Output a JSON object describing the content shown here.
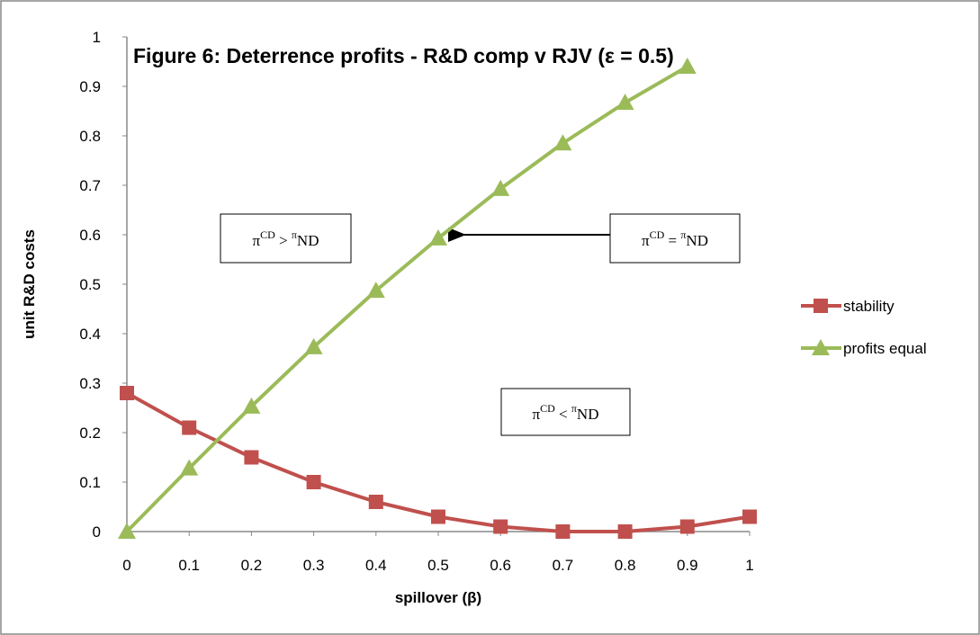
{
  "chart_data": {
    "type": "line",
    "title": "Figure 6: Deterrence profits - R&D comp v RJV (ε = 0.5)",
    "xlabel": "spillover (β)",
    "ylabel": "unit R&D costs",
    "series": [
      {
        "name": "stability",
        "color": "#c0504d",
        "marker": "square",
        "x": [
          0,
          0.1,
          0.2,
          0.3,
          0.4,
          0.5,
          0.6,
          0.7,
          0.8,
          0.9,
          1
        ],
        "values": [
          0.28,
          0.21,
          0.15,
          0.1,
          0.06,
          0.03,
          0.01,
          0,
          0,
          0.01,
          0.03
        ]
      },
      {
        "name": "profits equal",
        "color": "#9bbb59",
        "marker": "triangle",
        "x": [
          0,
          0.1,
          0.2,
          0.3,
          0.4,
          0.5,
          0.6,
          0.7,
          0.8,
          0.9
        ],
        "values": [
          0,
          0.128,
          0.253,
          0.373,
          0.487,
          0.593,
          0.693,
          0.785,
          0.867,
          0.94
        ]
      }
    ],
    "xlim": [
      0,
      1
    ],
    "xticks": [
      0,
      0.1,
      0.2,
      0.3,
      0.4,
      0.5,
      0.6,
      0.7,
      0.8,
      0.9,
      1
    ],
    "ylim": [
      0,
      1
    ],
    "yticks": [
      0,
      0.1,
      0.2,
      0.3,
      0.4,
      0.5,
      0.6,
      0.7,
      0.8,
      0.9,
      1
    ],
    "grid": false,
    "legend": "right",
    "annotations": [
      {
        "parts": [
          "π",
          "CD",
          " > ",
          "π",
          "ND"
        ]
      },
      {
        "parts": [
          "π",
          "CD",
          " = ",
          "π",
          "ND"
        ]
      },
      {
        "parts": [
          "π",
          "CD",
          " < ",
          "π",
          "ND"
        ]
      }
    ]
  }
}
